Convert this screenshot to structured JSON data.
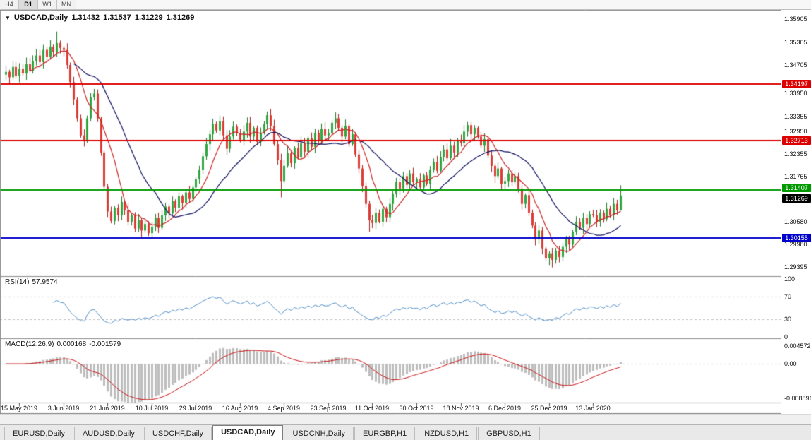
{
  "icons": {
    "one_click_trading": "▼"
  },
  "toolbar": {
    "timeframes": [
      "H4",
      "D1",
      "W1",
      "MN"
    ],
    "active": "D1"
  },
  "chart": {
    "title": {
      "symbol": "USDCAD,Daily",
      "open": "1.31432",
      "high": "1.31537",
      "low": "1.31229",
      "close": "1.31269"
    },
    "price_axis_ticks": [
      "1.35905",
      "1.35305",
      "1.34705",
      "1.33950",
      "1.33355",
      "1.32950",
      "1.32355",
      "1.31765",
      "1.30580",
      "1.29980",
      "1.29395"
    ],
    "levels": [
      {
        "label": "1.34197",
        "value": 1.34197,
        "color": "#dd0000",
        "type": "resistance",
        "label_offset": 0
      },
      {
        "label": "1.32713",
        "value": 1.32713,
        "color": "#dd0000",
        "type": "resistance",
        "label_offset": 0
      },
      {
        "label": "1.31407",
        "value": 1.31407,
        "color": "#009900",
        "type": "support",
        "label_offset": -3
      },
      {
        "label": "1.30155",
        "value": 1.30155,
        "color": "#0000cc",
        "type": "support",
        "label_offset": 0
      }
    ],
    "current_price": {
      "label": "1.31269",
      "value": 1.31269,
      "bg": "#000000",
      "label_offset": 4
    },
    "date_labels": [
      "15 May 2019",
      "3 Jun 2019",
      "21 Jun 2019",
      "10 Jul 2019",
      "29 Jul 2019",
      "16 Aug 2019",
      "4 Sep 2019",
      "23 Sep 2019",
      "11 Oct 2019",
      "30 Oct 2019",
      "18 Nov 2019",
      "6 Dec 2019",
      "25 Dec 2019",
      "13 Jan 2020"
    ]
  },
  "rsi": {
    "name": "RSI(14)",
    "value": "57.9574",
    "axis_ticks": [
      "100",
      "70",
      "30",
      "0"
    ],
    "guide_levels": [
      70,
      30
    ],
    "line_color": "#4f8fca"
  },
  "macd": {
    "name": "MACD(12,26,9)",
    "value_main": "0.000168",
    "value_signal": "-0.001579",
    "axis_ticks": [
      "0.004572",
      "0.00",
      "-0.008891"
    ],
    "histogram_color": "#bdbdbd",
    "signal_color": "#cc1111"
  },
  "tabs": {
    "items": [
      "EURUSD,Daily",
      "AUDUSD,Daily",
      "USDCHF,Daily",
      "USDCAD,Daily",
      "USDCNH,Daily",
      "EURGBP,H1",
      "NZDUSD,H1",
      "GBPUSD,H1"
    ],
    "active": "USDCAD,Daily"
  },
  "chart_data": {
    "type": "candlestick",
    "symbol": "USDCAD",
    "timeframe": "Daily",
    "y_range": [
      1.2915,
      1.3615
    ],
    "rsi_range": [
      0,
      100
    ],
    "macd_range": [
      -0.0096,
      0.0058
    ],
    "first_open": 1.3445,
    "up_color": "#2fa63f",
    "up_border": "#1f7a2c",
    "down_color": "#dd3b34",
    "down_border": "#a8251f",
    "moving_averages": [
      {
        "period": 8,
        "color": "#cc2222"
      },
      {
        "period": 21,
        "color": "#101060"
      }
    ],
    "indicators": {
      "rsi_period": 14,
      "macd": [
        12,
        26,
        9
      ]
    },
    "date_tick_bars": [
      4,
      17,
      30,
      43,
      56,
      69,
      82,
      95,
      108,
      121,
      134,
      147,
      160,
      173
    ],
    "wick_overrides": {
      "15": {
        "high": 1.3558
      },
      "77": {
        "high": 1.3348
      },
      "81": {
        "low": 1.3122
      },
      "107": {
        "low": 1.3032
      },
      "161": {
        "low": 1.2938
      },
      "181": {
        "high": 1.31537,
        "low": 1.31229
      }
    },
    "closes": [
      1.3452,
      1.3438,
      1.3465,
      1.3442,
      1.346,
      1.3448,
      1.3472,
      1.3455,
      1.348,
      1.3495,
      1.3478,
      1.351,
      1.3492,
      1.3518,
      1.3505,
      1.3528,
      1.3515,
      1.351,
      1.347,
      1.3425,
      1.338,
      1.333,
      1.3285,
      1.3272,
      1.333,
      1.3385,
      1.3395,
      1.333,
      1.324,
      1.315,
      1.3085,
      1.306,
      1.3095,
      1.3075,
      1.311,
      1.3088,
      1.3058,
      1.3075,
      1.304,
      1.3062,
      1.3035,
      1.3052,
      1.3028,
      1.3045,
      1.3068,
      1.3042,
      1.3075,
      1.3098,
      1.308,
      1.3112,
      1.3095,
      1.3125,
      1.3108,
      1.3135,
      1.3118,
      1.3148,
      1.317,
      1.3195,
      1.323,
      1.3262,
      1.3288,
      1.3315,
      1.3298,
      1.3322,
      1.3285,
      1.325,
      1.3282,
      1.3308,
      1.329,
      1.3272,
      1.3295,
      1.3318,
      1.3282,
      1.3305,
      1.3268,
      1.3292,
      1.3315,
      1.3338,
      1.331,
      1.3262,
      1.322,
      1.3165,
      1.3205,
      1.3238,
      1.3212,
      1.3252,
      1.3228,
      1.3265,
      1.3242,
      1.3278,
      1.3255,
      1.3292,
      1.327,
      1.3302,
      1.3285,
      1.329,
      1.3318,
      1.333,
      1.3305,
      1.3282,
      1.331,
      1.3262,
      1.3288,
      1.3235,
      1.3198,
      1.3152,
      1.3105,
      1.3062,
      1.3055,
      1.3082,
      1.3058,
      1.3092,
      1.307,
      1.3105,
      1.3132,
      1.3162,
      1.3145,
      1.3178,
      1.3155,
      1.3185,
      1.3162,
      1.317,
      1.3148,
      1.318,
      1.3158,
      1.3195,
      1.3215,
      1.3192,
      1.3228,
      1.3248,
      1.3225,
      1.3258,
      1.324,
      1.3272,
      1.3265,
      1.3295,
      1.3312,
      1.3288,
      1.3305,
      1.3282,
      1.3258,
      1.3275,
      1.3232,
      1.3205,
      1.3178,
      1.3198,
      1.3158,
      1.3165,
      1.3185,
      1.3162,
      1.3178,
      1.3145,
      1.3105,
      1.3128,
      1.3082,
      1.3048,
      1.3012,
      1.3035,
      1.2988,
      1.2962,
      1.2975,
      1.2958,
      1.2982,
      1.2965,
      1.2992,
      1.3015,
      1.2998,
      1.3032,
      1.3058,
      1.3042,
      1.3068,
      1.3052,
      1.3078,
      1.3075,
      1.3058,
      1.3082,
      1.3065,
      1.3092,
      1.3075,
      1.3105,
      1.3088,
      1.31269
    ]
  }
}
